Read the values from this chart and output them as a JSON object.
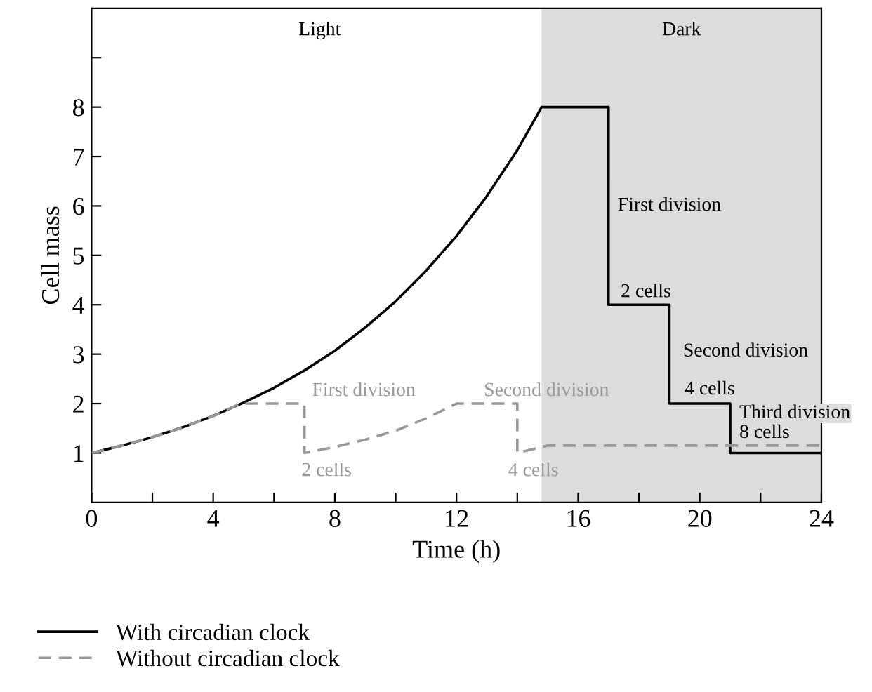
{
  "chart_data": {
    "type": "line",
    "xlabel": "Time (h)",
    "ylabel": "Cell mass",
    "xlim": [
      0,
      24
    ],
    "ylim": [
      0,
      10
    ],
    "xticks": [
      0,
      {
        "value": 2,
        "label": null
      },
      4,
      {
        "value": 6,
        "label": null
      },
      8,
      {
        "value": 10,
        "label": null
      },
      12,
      {
        "value": 14,
        "label": null
      },
      16,
      {
        "value": 18,
        "label": null
      },
      20,
      {
        "value": 22,
        "label": null
      },
      24
    ],
    "yticks": [
      1,
      2,
      3,
      4,
      5,
      6,
      7,
      8,
      {
        "value": 9,
        "label": null
      }
    ],
    "grid": false,
    "legend": "bottom",
    "series": [
      {
        "name": "With circadian clock",
        "color": "#000000",
        "line_style": "solid",
        "x": [
          0,
          1,
          2,
          3,
          4,
          5,
          6,
          7,
          8,
          9,
          10,
          11,
          12,
          13,
          14,
          14.8,
          17,
          17,
          19,
          19,
          21,
          21,
          24
        ],
        "values": [
          1,
          1.15,
          1.32,
          1.52,
          1.75,
          2.02,
          2.32,
          2.67,
          3.07,
          3.54,
          4.07,
          4.69,
          5.39,
          6.2,
          7.13,
          8,
          8,
          4,
          4,
          2,
          2,
          1,
          1
        ]
      },
      {
        "name": "Without circadian clock",
        "color": "#999999",
        "line_style": "dashed",
        "x": [
          0,
          1,
          2,
          3,
          4,
          4.9,
          7,
          7,
          8,
          9,
          10,
          11,
          12,
          14,
          14,
          15,
          24
        ],
        "values": [
          1,
          1.15,
          1.32,
          1.52,
          1.75,
          2,
          2,
          1,
          1.12,
          1.27,
          1.45,
          1.7,
          2,
          2,
          1,
          1.15,
          1.15
        ]
      }
    ],
    "bands": [
      {
        "axis": "x",
        "from": 14.8,
        "to": 24,
        "label": "Dark",
        "color": "#dcdcdc"
      }
    ],
    "annotations": [
      "Light",
      "First division",
      "2 cells",
      "Second division",
      "4 cells",
      "Third division",
      "8 cells",
      "First division",
      "2 cells",
      "Second division",
      "4 cells"
    ]
  }
}
